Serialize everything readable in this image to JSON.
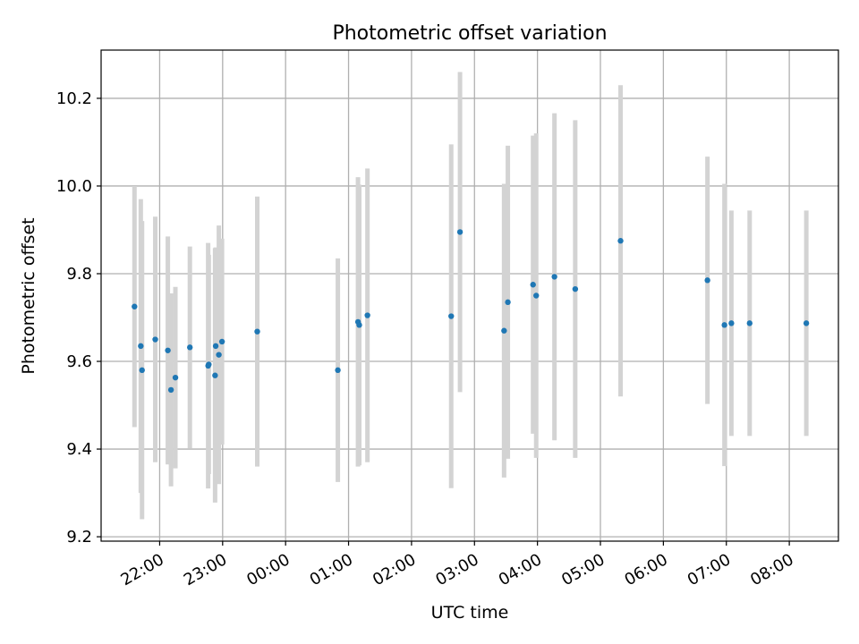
{
  "chart_data": {
    "type": "scatter",
    "title": "Photometric offset variation",
    "xlabel": "UTC time",
    "ylabel": "Photometric offset",
    "x_ticks": [
      {
        "t": 22.0,
        "label": "22:00"
      },
      {
        "t": 23.0,
        "label": "23:00"
      },
      {
        "t": 24.0,
        "label": "00:00"
      },
      {
        "t": 25.0,
        "label": "01:00"
      },
      {
        "t": 26.0,
        "label": "02:00"
      },
      {
        "t": 27.0,
        "label": "03:00"
      },
      {
        "t": 28.0,
        "label": "04:00"
      },
      {
        "t": 29.0,
        "label": "05:00"
      },
      {
        "t": 30.0,
        "label": "06:00"
      },
      {
        "t": 31.0,
        "label": "07:00"
      },
      {
        "t": 32.0,
        "label": "08:00"
      }
    ],
    "y_ticks": [
      9.2,
      9.4,
      9.6,
      9.8,
      10.0,
      10.2
    ],
    "y_tick_labels": [
      "9.2",
      "9.4",
      "9.6",
      "9.8",
      "10.0",
      "10.2"
    ],
    "xlim": [
      21.07,
      32.78
    ],
    "ylim": [
      9.19,
      10.31
    ],
    "grid": true,
    "point_color": "#1f77b4",
    "errorbar_color": "#d3d3d3",
    "points": [
      {
        "x": 21.6,
        "y": 9.725,
        "yerr": 0.275
      },
      {
        "x": 21.7,
        "y": 9.635,
        "yerr": 0.335
      },
      {
        "x": 21.72,
        "y": 9.58,
        "yerr": 0.34
      },
      {
        "x": 21.93,
        "y": 9.65,
        "yerr": 0.28
      },
      {
        "x": 22.13,
        "y": 9.625,
        "yerr": 0.26
      },
      {
        "x": 22.18,
        "y": 9.535,
        "yerr": 0.22
      },
      {
        "x": 22.25,
        "y": 9.563,
        "yerr": 0.207
      },
      {
        "x": 22.48,
        "y": 9.632,
        "yerr": 0.23
      },
      {
        "x": 22.77,
        "y": 9.59,
        "yerr": 0.28
      },
      {
        "x": 22.78,
        "y": 9.593,
        "yerr": 0.25
      },
      {
        "x": 22.88,
        "y": 9.568,
        "yerr": 0.29
      },
      {
        "x": 22.89,
        "y": 9.635,
        "yerr": 0.225
      },
      {
        "x": 22.94,
        "y": 9.615,
        "yerr": 0.295
      },
      {
        "x": 22.99,
        "y": 9.645,
        "yerr": 0.235
      },
      {
        "x": 23.55,
        "y": 9.668,
        "yerr": 0.308
      },
      {
        "x": 24.83,
        "y": 9.58,
        "yerr": 0.255
      },
      {
        "x": 25.15,
        "y": 9.69,
        "yerr": 0.33
      },
      {
        "x": 25.17,
        "y": 9.683,
        "yerr": 0.32
      },
      {
        "x": 25.3,
        "y": 9.705,
        "yerr": 0.335
      },
      {
        "x": 26.63,
        "y": 9.703,
        "yerr": 0.392
      },
      {
        "x": 26.77,
        "y": 9.895,
        "yerr": 0.365
      },
      {
        "x": 27.47,
        "y": 9.67,
        "yerr": 0.335
      },
      {
        "x": 27.53,
        "y": 9.735,
        "yerr": 0.357
      },
      {
        "x": 27.93,
        "y": 9.775,
        "yerr": 0.34
      },
      {
        "x": 27.98,
        "y": 9.75,
        "yerr": 0.37
      },
      {
        "x": 28.27,
        "y": 9.793,
        "yerr": 0.373
      },
      {
        "x": 28.6,
        "y": 9.765,
        "yerr": 0.385
      },
      {
        "x": 29.32,
        "y": 9.875,
        "yerr": 0.355
      },
      {
        "x": 30.7,
        "y": 9.785,
        "yerr": 0.282
      },
      {
        "x": 30.97,
        "y": 9.683,
        "yerr": 0.322
      },
      {
        "x": 31.08,
        "y": 9.687,
        "yerr": 0.257
      },
      {
        "x": 31.37,
        "y": 9.687,
        "yerr": 0.257
      },
      {
        "x": 32.27,
        "y": 9.687,
        "yerr": 0.257
      }
    ]
  }
}
